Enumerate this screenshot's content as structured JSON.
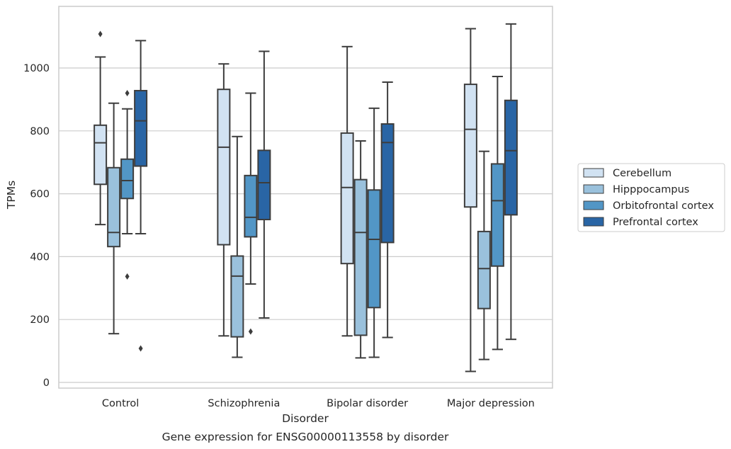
{
  "chart_data": {
    "type": "box",
    "title": "",
    "caption": "Gene expression for ENSG00000113558 by disorder",
    "xlabel": "Disorder",
    "ylabel": "TPMs",
    "ylim": [
      -18,
      1200
    ],
    "yticks": [
      0,
      200,
      400,
      600,
      800,
      1000
    ],
    "grid": "horizontal",
    "legend_position": "right",
    "categories": [
      "Control",
      "Schizophrenia",
      "Bipolar disorder",
      "Major depression"
    ],
    "series": [
      {
        "name": "Cerebellum",
        "color": "#d1e2f2",
        "boxes": [
          {
            "whislo": 502,
            "q1": 630,
            "med": 762,
            "q3": 818,
            "whishi": 1035,
            "fliers": [
              1108
            ]
          },
          {
            "whislo": 148,
            "q1": 438,
            "med": 748,
            "q3": 932,
            "whishi": 1013,
            "fliers": []
          },
          {
            "whislo": 148,
            "q1": 378,
            "med": 620,
            "q3": 793,
            "whishi": 1068,
            "fliers": []
          },
          {
            "whislo": 35,
            "q1": 558,
            "med": 805,
            "q3": 948,
            "whishi": 1125,
            "fliers": []
          }
        ]
      },
      {
        "name": "Hipppocampus",
        "color": "#9ac1dc",
        "boxes": [
          {
            "whislo": 155,
            "q1": 432,
            "med": 477,
            "q3": 683,
            "whishi": 888,
            "fliers": []
          },
          {
            "whislo": 80,
            "q1": 145,
            "med": 338,
            "q3": 402,
            "whishi": 782,
            "fliers": []
          },
          {
            "whislo": 78,
            "q1": 150,
            "med": 477,
            "q3": 645,
            "whishi": 768,
            "fliers": []
          },
          {
            "whislo": 73,
            "q1": 235,
            "med": 362,
            "q3": 480,
            "whishi": 735,
            "fliers": []
          }
        ]
      },
      {
        "name": "Orbitofrontal cortex",
        "color": "#5296c6",
        "boxes": [
          {
            "whislo": 473,
            "q1": 585,
            "med": 642,
            "q3": 710,
            "whishi": 870,
            "fliers": [
              920,
              337
            ]
          },
          {
            "whislo": 313,
            "q1": 463,
            "med": 525,
            "q3": 658,
            "whishi": 920,
            "fliers": [
              162
            ]
          },
          {
            "whislo": 80,
            "q1": 238,
            "med": 455,
            "q3": 612,
            "whishi": 872,
            "fliers": []
          },
          {
            "whislo": 105,
            "q1": 370,
            "med": 578,
            "q3": 695,
            "whishi": 973,
            "fliers": []
          }
        ]
      },
      {
        "name": "Prefrontal cortex",
        "color": "#2965a5",
        "boxes": [
          {
            "whislo": 473,
            "q1": 688,
            "med": 832,
            "q3": 928,
            "whishi": 1087,
            "fliers": [
              108
            ]
          },
          {
            "whislo": 205,
            "q1": 518,
            "med": 635,
            "q3": 738,
            "whishi": 1053,
            "fliers": []
          },
          {
            "whislo": 143,
            "q1": 445,
            "med": 763,
            "q3": 822,
            "whishi": 955,
            "fliers": []
          },
          {
            "whislo": 137,
            "q1": 533,
            "med": 737,
            "q3": 897,
            "whishi": 1140,
            "fliers": []
          }
        ]
      }
    ]
  }
}
